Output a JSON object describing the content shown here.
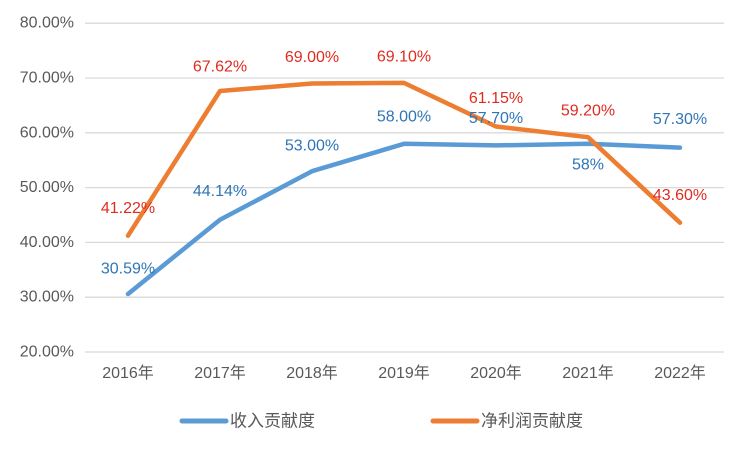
{
  "chart_data": {
    "type": "line",
    "title": "",
    "xlabel": "",
    "ylabel": "",
    "categories": [
      "2016年",
      "2017年",
      "2018年",
      "2019年",
      "2020年",
      "2021年",
      "2022年"
    ],
    "series": [
      {
        "name": "收入贡献度",
        "color": "#5B9BD5",
        "label_color": "#2E75B6",
        "values": [
          30.59,
          44.14,
          53.0,
          58.0,
          57.7,
          58.0,
          57.3
        ],
        "labels": [
          "30.59%",
          "44.14%",
          "53.00%",
          "58.00%",
          "57.70%",
          "58%",
          "57.30%"
        ],
        "label_dy": [
          -25,
          -28,
          -25,
          -27,
          -27,
          21,
          -28
        ]
      },
      {
        "name": "净利润贡献度",
        "color": "#ED7D31",
        "label_color": "#E02B20",
        "values": [
          41.22,
          67.62,
          69.0,
          69.1,
          61.15,
          59.2,
          43.6
        ],
        "labels": [
          "41.22%",
          "67.62%",
          "69.00%",
          "69.10%",
          "61.15%",
          "59.20%",
          "43.60%"
        ],
        "label_dy": [
          -27,
          -24,
          -26,
          -26,
          -28,
          -26,
          -27
        ]
      }
    ],
    "y_ticks": [
      {
        "value": 80,
        "label": "80.00%"
      },
      {
        "value": 70,
        "label": "70.00%"
      },
      {
        "value": 60,
        "label": "60.00%"
      },
      {
        "value": 50,
        "label": "50.00%"
      },
      {
        "value": 40,
        "label": "40.00%"
      },
      {
        "value": 30,
        "label": "30.00%"
      },
      {
        "value": 20,
        "label": "20.00%"
      }
    ],
    "ylim": [
      20,
      80
    ],
    "grid": true,
    "gridline_color": "#D9D9D9",
    "axis_text_color": "#595959",
    "legend_position": "bottom",
    "legend": [
      {
        "label": "收入贡献度",
        "color": "#5B9BD5"
      },
      {
        "label": "净利润贡献度",
        "color": "#ED7D31"
      }
    ]
  }
}
